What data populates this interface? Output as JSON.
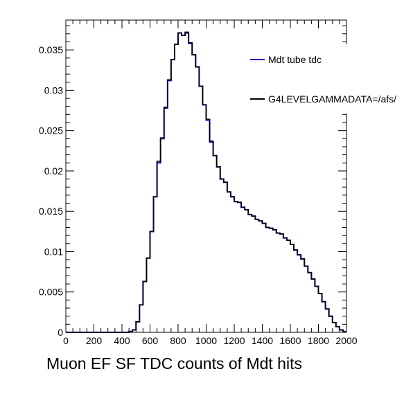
{
  "chart_data": {
    "type": "line",
    "style": "step-histogram",
    "title": "Muon EF SF TDC counts of Mdt hits",
    "xlabel": "",
    "ylabel": "",
    "xlim": [
      0,
      2000
    ],
    "ylim": [
      0,
      0.0387
    ],
    "x_ticks": [
      0,
      200,
      400,
      600,
      800,
      1000,
      1200,
      1400,
      1600,
      1800,
      2000
    ],
    "x_tick_labels": [
      "0",
      "200",
      "400",
      "600",
      "800",
      "1000",
      "1200",
      "1400",
      "1600",
      "1800",
      "2000"
    ],
    "y_ticks": [
      0,
      0.005,
      0.01,
      0.015,
      0.02,
      0.025,
      0.03,
      0.035
    ],
    "y_tick_labels": [
      "0",
      "0.005",
      "0.01",
      "0.015",
      "0.02",
      "0.025",
      "0.03",
      "0.035"
    ],
    "grid": false,
    "legend_position": "top-right",
    "bin_width": 25,
    "bin_edges_start": 0,
    "series": [
      {
        "name": "Mdt tube tdc",
        "color": "#0000cc",
        "values": [
          0,
          0,
          0,
          0,
          0,
          0,
          0,
          0,
          0,
          0,
          0,
          0,
          0,
          0,
          0,
          0,
          0,
          0,
          0.0001,
          0.0003,
          0.0013,
          0.0034,
          0.0063,
          0.0092,
          0.0125,
          0.0168,
          0.021,
          0.024,
          0.0278,
          0.0312,
          0.0338,
          0.0357,
          0.0371,
          0.0368,
          0.0371,
          0.0358,
          0.0344,
          0.0329,
          0.0305,
          0.0282,
          0.0263,
          0.0236,
          0.0219,
          0.0205,
          0.019,
          0.0186,
          0.0174,
          0.0168,
          0.0162,
          0.0161,
          0.0155,
          0.0152,
          0.0146,
          0.0144,
          0.014,
          0.0138,
          0.0135,
          0.013,
          0.0129,
          0.0127,
          0.0123,
          0.0122,
          0.0117,
          0.0114,
          0.0109,
          0.0102,
          0.0096,
          0.0091,
          0.0082,
          0.0074,
          0.0066,
          0.0057,
          0.0048,
          0.0038,
          0.0029,
          0.002,
          0.0012,
          0.0007,
          0.0003,
          0.0001
        ]
      },
      {
        "name": "G4LEVELGAMMADATA=/afs/",
        "color": "#000000",
        "values": [
          0,
          0,
          0,
          0,
          0,
          0,
          0,
          0,
          0,
          0,
          0,
          0,
          0,
          0,
          0,
          0,
          0,
          0,
          0.0001,
          0.0003,
          0.0013,
          0.0034,
          0.0063,
          0.0092,
          0.0125,
          0.0168,
          0.0212,
          0.0241,
          0.0279,
          0.0313,
          0.0338,
          0.0357,
          0.0371,
          0.0368,
          0.0372,
          0.0359,
          0.0344,
          0.0329,
          0.0305,
          0.0282,
          0.0264,
          0.0237,
          0.0219,
          0.0205,
          0.019,
          0.0186,
          0.0174,
          0.0168,
          0.0162,
          0.0161,
          0.0155,
          0.0152,
          0.0146,
          0.0144,
          0.014,
          0.0138,
          0.0135,
          0.013,
          0.0129,
          0.0127,
          0.0123,
          0.0122,
          0.0117,
          0.0114,
          0.0109,
          0.0102,
          0.0096,
          0.0091,
          0.0082,
          0.0074,
          0.0066,
          0.0057,
          0.0048,
          0.0038,
          0.0029,
          0.002,
          0.0012,
          0.0007,
          0.0003,
          0.0001
        ]
      }
    ]
  }
}
